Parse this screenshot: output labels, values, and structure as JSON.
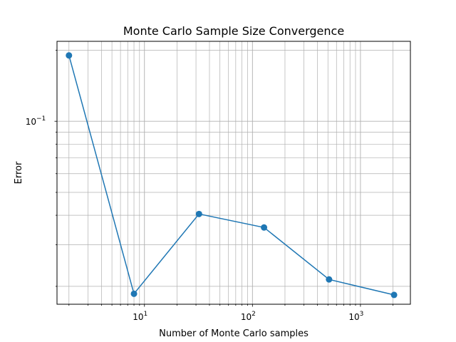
{
  "chart_data": {
    "type": "line",
    "title": "Monte Carlo Sample Size Convergence",
    "xlabel": "Number of Monte Carlo samples",
    "ylabel": "Error",
    "x_scale": "log",
    "y_scale": "log",
    "xlim": [
      1.55,
      2900
    ],
    "ylim": [
      0.0168,
      0.218
    ],
    "grid": "both, major and minor",
    "x_ticks": [
      {
        "value": 10,
        "base": "10",
        "exp": "1"
      },
      {
        "value": 100,
        "base": "10",
        "exp": "2"
      },
      {
        "value": 1000,
        "base": "10",
        "exp": "3"
      }
    ],
    "y_ticks": [
      {
        "value": 0.1,
        "base": "10",
        "exp": "−1"
      }
    ],
    "series": [
      {
        "color": "#1f77b4",
        "marker": "circle",
        "x": [
          2,
          8,
          32,
          128,
          512,
          2048
        ],
        "y": [
          0.19,
          0.0186,
          0.0405,
          0.0355,
          0.0214,
          0.0184
        ]
      }
    ]
  }
}
